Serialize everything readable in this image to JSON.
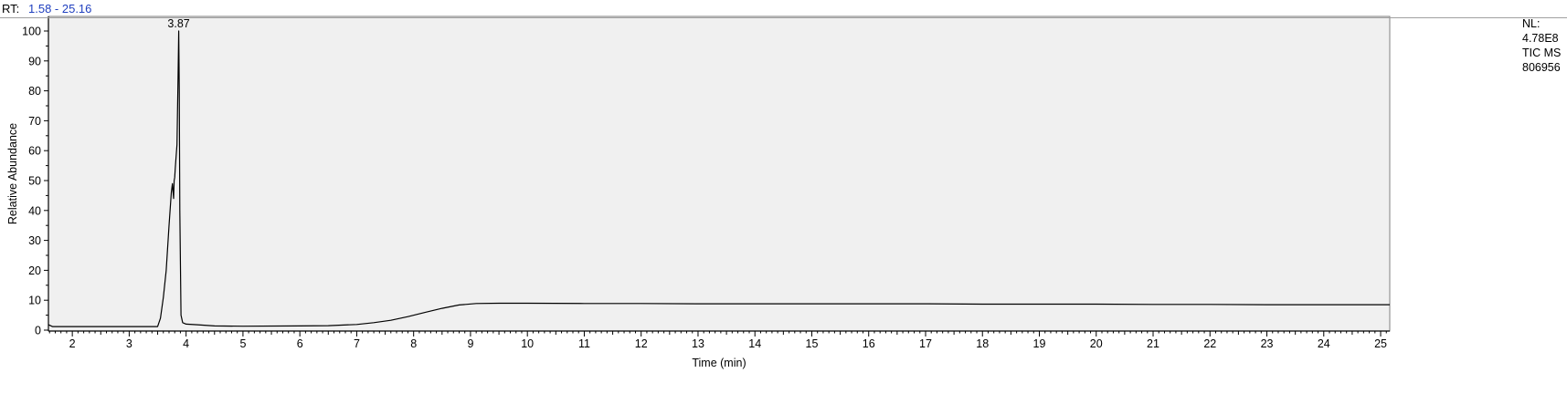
{
  "header": {
    "rt_label": "RT:",
    "rt_range": "1.58 - 25.16"
  },
  "info": {
    "nl_label": "NL:",
    "nl_value": "4.78E8",
    "scan_type": "TIC  MS",
    "file_id": "806956"
  },
  "colors": {
    "plot_background": "#f0f0f0",
    "trace": "#000000",
    "rt_range_text": "#1f3fbf"
  },
  "chart_data": {
    "type": "line",
    "title": "",
    "xlabel": "Time (min)",
    "ylabel": "Relative Abundance",
    "xlim": [
      1.58,
      25.16
    ],
    "ylim": [
      0,
      100
    ],
    "x_major_ticks": [
      2,
      3,
      4,
      5,
      6,
      7,
      8,
      9,
      10,
      11,
      12,
      13,
      14,
      15,
      16,
      17,
      18,
      19,
      20,
      21,
      22,
      23,
      24,
      25
    ],
    "y_major_ticks": [
      0,
      10,
      20,
      30,
      40,
      50,
      60,
      70,
      80,
      90,
      100
    ],
    "grid": false,
    "peak_annotations": [
      {
        "x": 3.87,
        "y": 100,
        "label": "3.87"
      }
    ],
    "series": [
      {
        "x": [
          1.58,
          1.65,
          2.0,
          2.5,
          3.0,
          3.5,
          3.55,
          3.6,
          3.65,
          3.7,
          3.74,
          3.76,
          3.78,
          3.79,
          3.8,
          3.81,
          3.82,
          3.84,
          3.86,
          3.87,
          3.88,
          3.89,
          3.91,
          3.94,
          4.0,
          4.2,
          4.5,
          5.0,
          6.0,
          6.5,
          7.0,
          7.3,
          7.6,
          7.9,
          8.2,
          8.5,
          8.8,
          9.1,
          9.5,
          10,
          11,
          12,
          13,
          14,
          15,
          16,
          17,
          18,
          19,
          20,
          21,
          22,
          23,
          24,
          25,
          25.16
        ],
        "y": [
          1.8,
          1.2,
          1.2,
          1.2,
          1.2,
          1.2,
          4,
          11,
          20,
          35,
          46,
          49,
          44,
          50,
          51,
          54,
          57,
          62,
          85,
          100,
          80,
          40,
          5,
          2.5,
          2,
          1.8,
          1.4,
          1.3,
          1.4,
          1.5,
          1.9,
          2.5,
          3.3,
          4.5,
          5.9,
          7.3,
          8.4,
          8.9,
          9.0,
          9.0,
          8.9,
          8.9,
          8.8,
          8.8,
          8.8,
          8.8,
          8.8,
          8.7,
          8.7,
          8.7,
          8.6,
          8.6,
          8.5,
          8.5,
          8.5,
          8.5
        ]
      }
    ]
  }
}
